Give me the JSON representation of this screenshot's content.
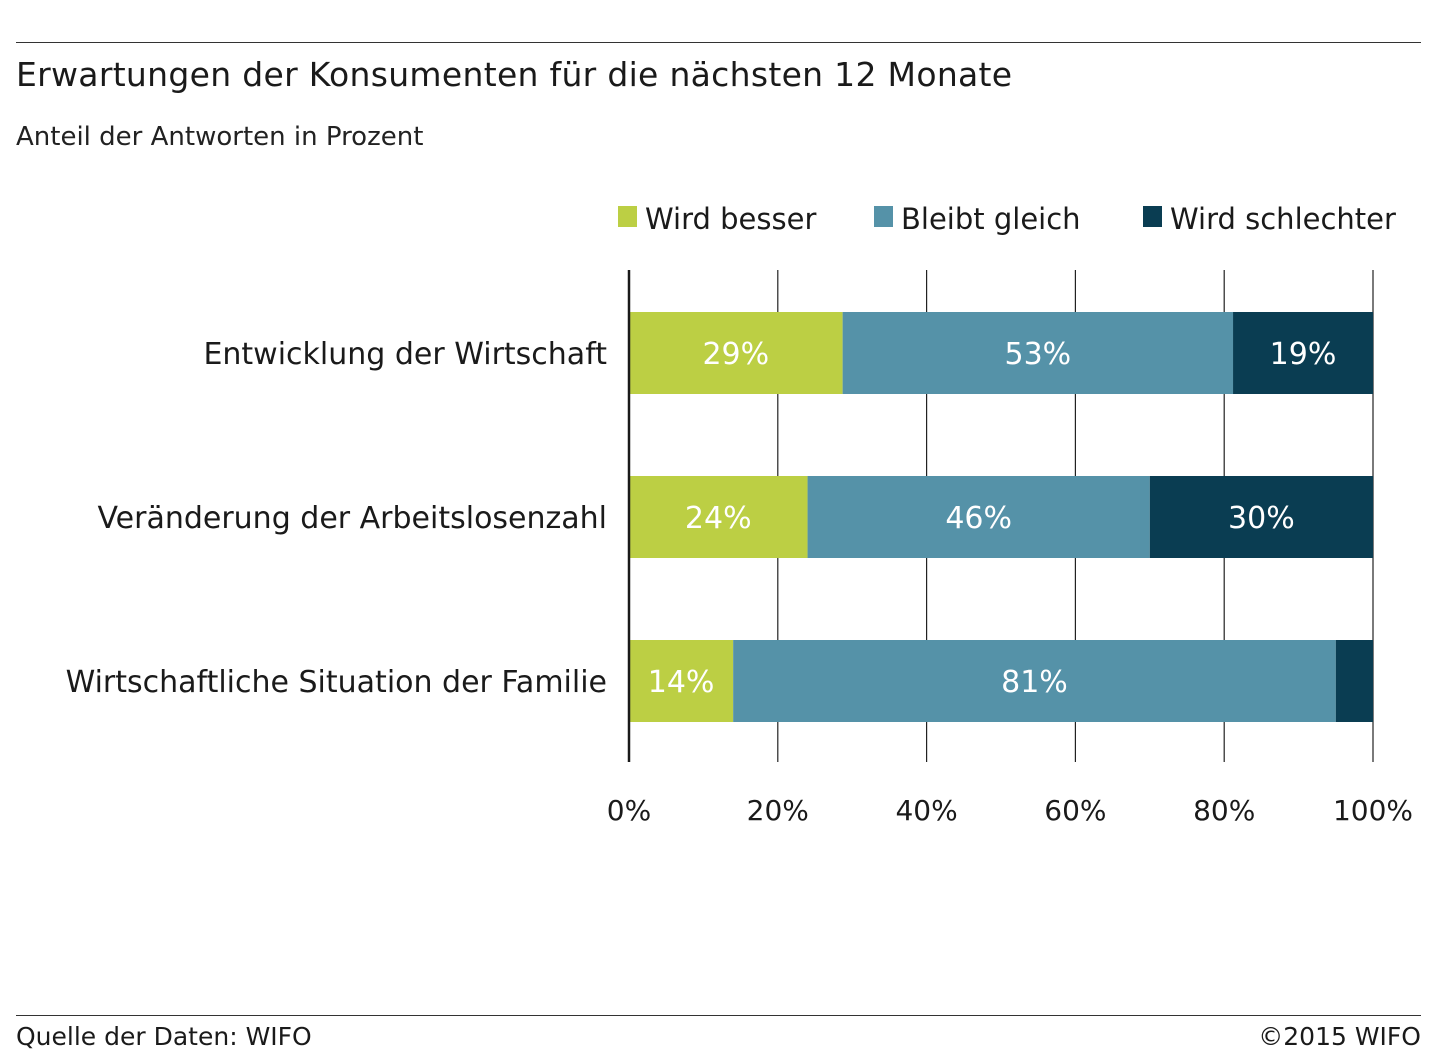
{
  "header": {
    "title": "Erwartungen der Konsumenten für die nächsten 12 Monate",
    "subtitle": "Anteil der Antworten in Prozent"
  },
  "footer": {
    "source": "Quelle der Daten: WIFO",
    "copyright": "©2015 WIFO"
  },
  "colors": {
    "wird_besser": "#bccf44",
    "bleibt_gleich": "#5592a8",
    "wird_schlechter": "#0a3d52",
    "grid": "#222222",
    "bar_label": "#ffffff"
  },
  "chart_data": {
    "type": "bar",
    "orientation": "horizontal",
    "stacked": true,
    "title": "Erwartungen der Konsumenten für die nächsten 12 Monate",
    "subtitle": "Anteil der Antworten in Prozent",
    "categories": [
      "Entwicklung der Wirtschaft",
      "Veränderung der Arbeitslosenzahl",
      "Wirtschaftliche Situation der Familie"
    ],
    "series": [
      {
        "name": "Wird besser",
        "color": "#bccf44",
        "values": [
          29,
          24,
          14
        ],
        "labels": [
          "29%",
          "24%",
          "14%"
        ]
      },
      {
        "name": "Bleibt gleich",
        "color": "#5592a8",
        "values": [
          53,
          46,
          81
        ],
        "labels": [
          "53%",
          "46%",
          "81%"
        ]
      },
      {
        "name": "Wird schlechter",
        "color": "#0a3d52",
        "values": [
          19,
          30,
          5
        ],
        "labels": [
          "19%",
          "30%",
          ""
        ]
      }
    ],
    "xlim": [
      0,
      100
    ],
    "xticks": [
      0,
      20,
      40,
      60,
      80,
      100
    ],
    "xtick_labels": [
      "0%",
      "20%",
      "40%",
      "60%",
      "80%",
      "100%"
    ],
    "grid": "vertical",
    "legend_position": "top-right"
  }
}
